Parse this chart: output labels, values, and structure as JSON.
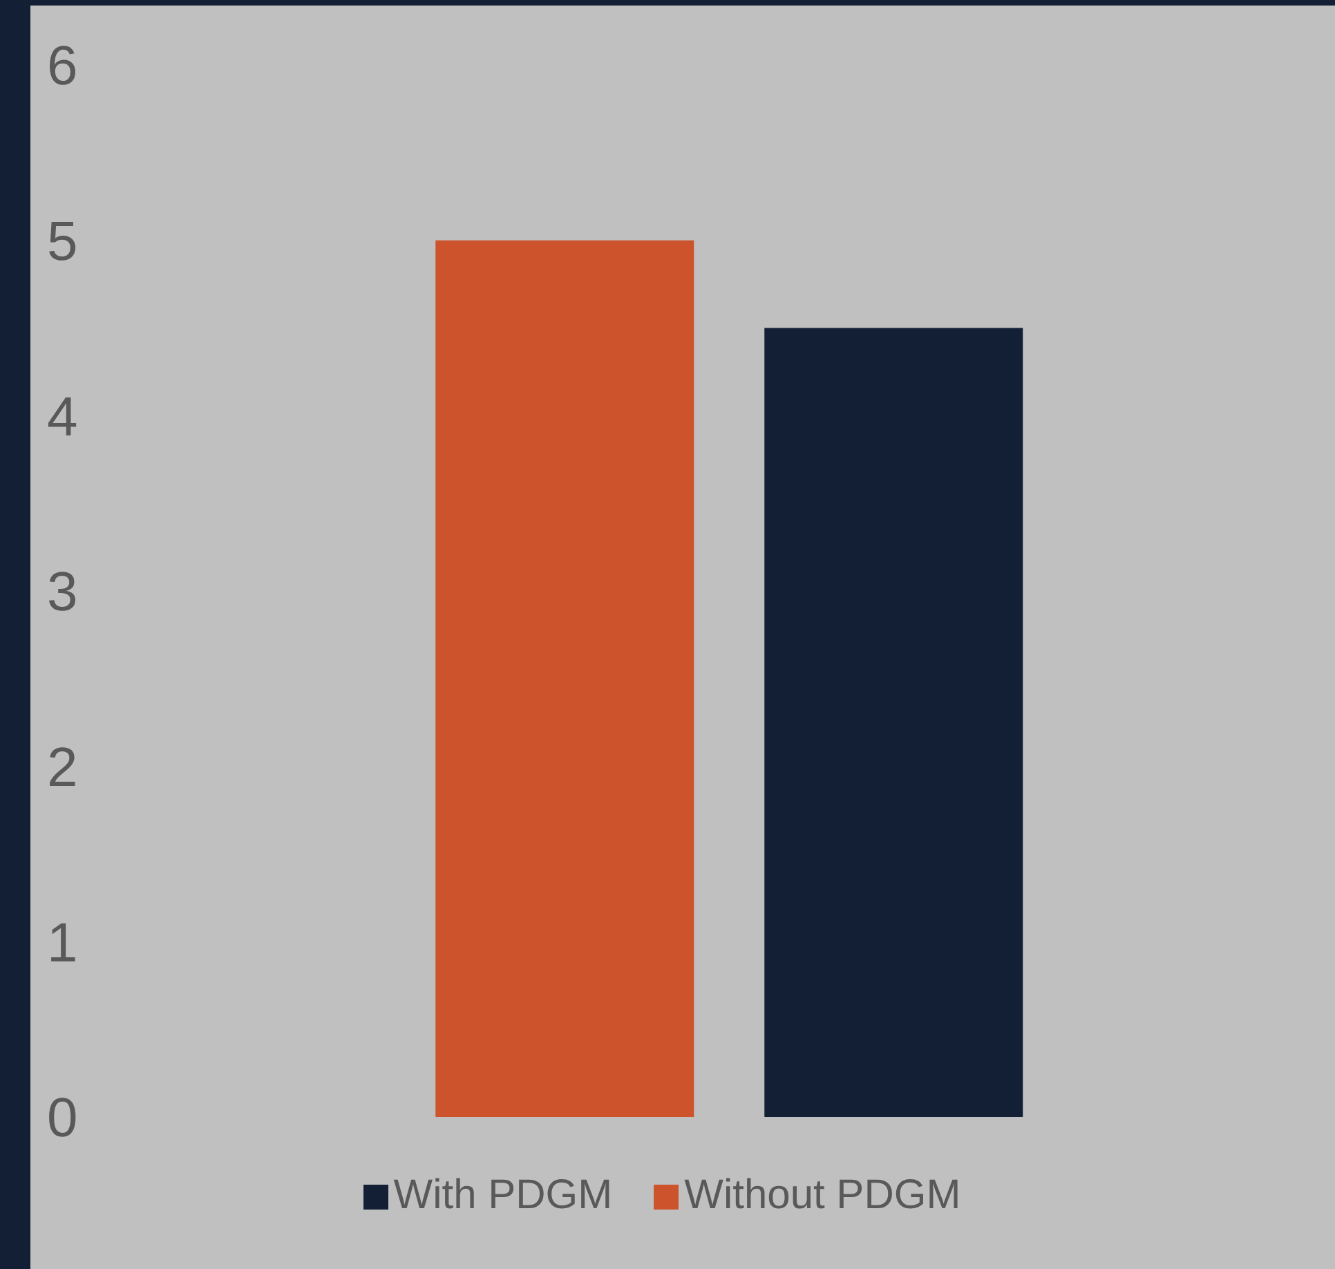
{
  "chart_data": {
    "type": "bar",
    "categories": [
      null
    ],
    "series": [
      {
        "name": "Without PDGM",
        "color": "#cc532b",
        "values": [
          5.0
        ]
      },
      {
        "name": "With PDGM",
        "color": "#121f35",
        "values": [
          4.5
        ]
      }
    ],
    "ylim": [
      0,
      6
    ],
    "yticks": [
      0,
      1,
      2,
      3,
      4,
      5,
      6
    ],
    "grid": false,
    "legend": "bottom"
  }
}
